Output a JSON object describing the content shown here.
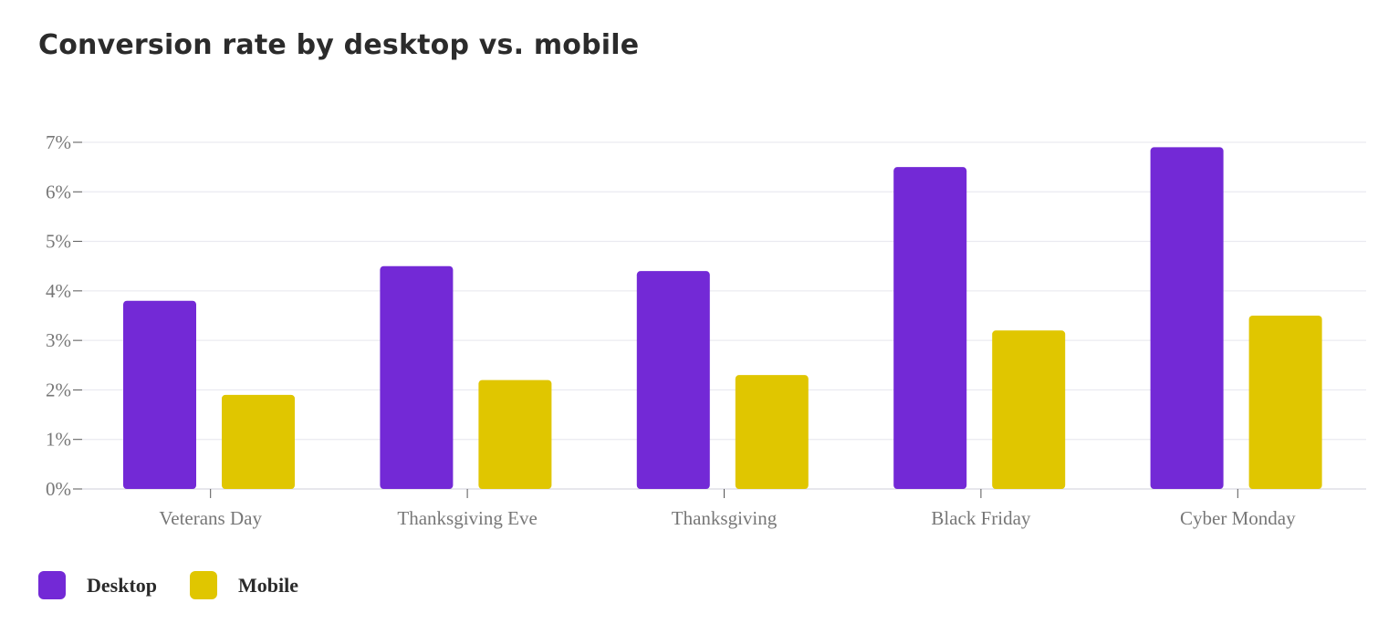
{
  "title": "Conversion rate by desktop vs. mobile",
  "colors": {
    "desktop": "#7329d6",
    "mobile": "#e0c600",
    "grid": "#e6e6ee",
    "axis": "#cfcfd8",
    "tick_text": "#777777",
    "title_text": "#2b2b2b"
  },
  "legend": [
    {
      "name": "Desktop",
      "color": "#7329d6"
    },
    {
      "name": "Mobile",
      "color": "#e0c600"
    }
  ],
  "chart_data": {
    "type": "bar",
    "categories": [
      "Veterans Day",
      "Thanksgiving Eve",
      "Thanksgiving",
      "Black Friday",
      "Cyber Monday"
    ],
    "series": [
      {
        "name": "Desktop",
        "values": [
          3.8,
          4.5,
          4.4,
          6.5,
          6.9
        ]
      },
      {
        "name": "Mobile",
        "values": [
          1.9,
          2.2,
          2.3,
          3.2,
          3.5
        ]
      }
    ],
    "title": "Conversion rate by desktop vs. mobile",
    "xlabel": "",
    "ylabel": "",
    "ylim": [
      0,
      7
    ],
    "yticks": [
      "0%",
      "1%",
      "2%",
      "3%",
      "4%",
      "5%",
      "6%",
      "7%"
    ],
    "grid": true,
    "legend_position": "bottom-left"
  }
}
